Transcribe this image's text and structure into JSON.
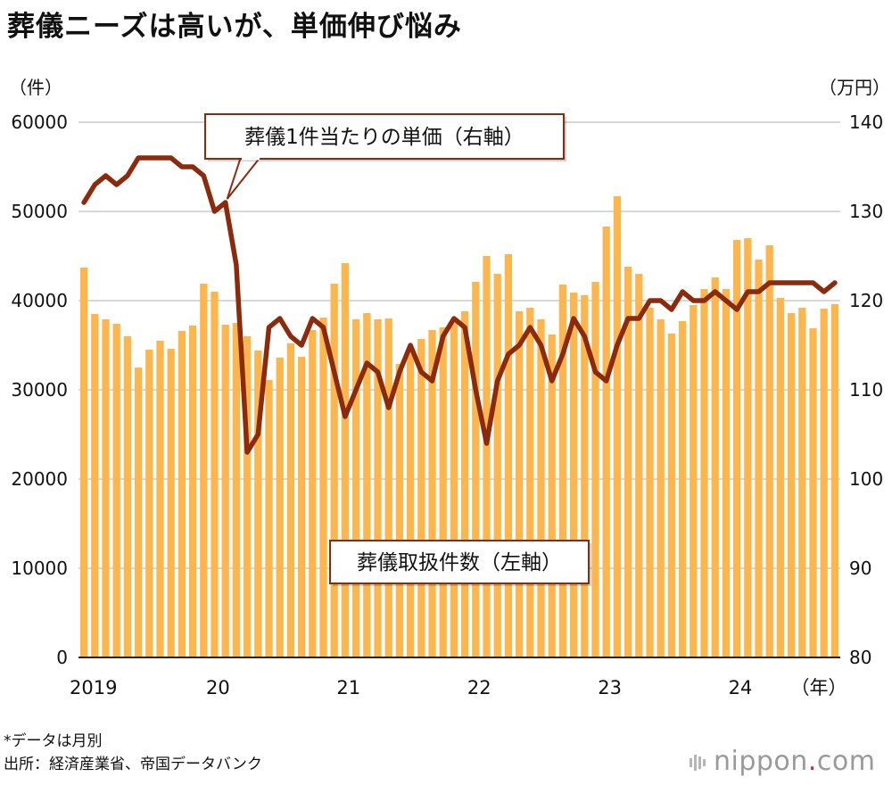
{
  "title": "葬儀ニーズは高いが、単価伸び悩み",
  "left_unit": "（件）",
  "right_unit": "（万円）",
  "notes": {
    "line1": "*データは月別",
    "line2": "出所：経済産業省、帝国データバンク"
  },
  "logo": {
    "name": "nippon",
    "dot": ".",
    "suffix": "com"
  },
  "colors": {
    "bars": "#FDB64E",
    "line": "#8B2A0C",
    "annotation_border": "#8B2A0C",
    "grid": "#cccccc"
  },
  "chart_data": {
    "type": "bar",
    "title": "葬儀ニーズは高いが、単価伸び悩み",
    "x_tick_labels": [
      "2019",
      "20",
      "21",
      "22",
      "23",
      "24",
      "（年）"
    ],
    "y_left_ticks": [
      "60000",
      "50000",
      "40000",
      "30000",
      "20000",
      "10000",
      "0"
    ],
    "y_right_ticks": [
      "140",
      "130",
      "120",
      "110",
      "100",
      "90",
      "80"
    ],
    "y_left_range": [
      0,
      60000
    ],
    "y_right_range": [
      80,
      140
    ],
    "grid": true,
    "series": [
      {
        "name": "葬儀取扱件数（左軸）",
        "type": "bar",
        "axis": "left",
        "values": [
          43700,
          38500,
          37900,
          37400,
          36000,
          32500,
          34500,
          35500,
          34600,
          36600,
          37200,
          41900,
          41000,
          37300,
          37500,
          36000,
          34400,
          31100,
          33600,
          35200,
          33700,
          36700,
          38100,
          41900,
          44200,
          37900,
          38600,
          37900,
          38000,
          32900,
          34600,
          35700,
          36700,
          37000,
          37500,
          38800,
          42100,
          45000,
          43000,
          45200,
          38800,
          39200,
          37900,
          36200,
          41800,
          40900,
          40600,
          42100,
          48300,
          51700,
          43800,
          43000,
          39200,
          37900,
          36300,
          37700,
          39500,
          41300,
          42600,
          41300,
          46800,
          47000,
          44600,
          46200,
          40300,
          38600,
          39200,
          36900,
          39100,
          39600
        ]
      },
      {
        "name": "葬儀1件当たりの単価（右軸）",
        "type": "line",
        "axis": "right",
        "values": [
          131,
          133,
          134,
          133,
          134,
          136,
          136,
          136,
          136,
          135,
          135,
          134,
          130,
          131,
          124,
          103,
          105,
          117,
          118,
          116,
          115,
          118,
          117,
          112,
          107,
          110,
          113,
          112,
          108,
          112,
          115,
          112,
          111,
          116,
          118,
          117,
          110,
          104,
          111,
          114,
          115,
          117,
          115,
          111,
          114,
          118,
          116,
          112,
          111,
          115,
          118,
          118,
          120,
          120,
          119,
          121,
          120,
          120,
          121,
          120,
          119,
          121,
          121,
          122,
          122,
          122,
          122,
          122,
          121,
          122
        ]
      }
    ],
    "annotations": [
      "葬儀1件当たりの単価（右軸）",
      "葬儀取扱件数（左軸）"
    ]
  }
}
